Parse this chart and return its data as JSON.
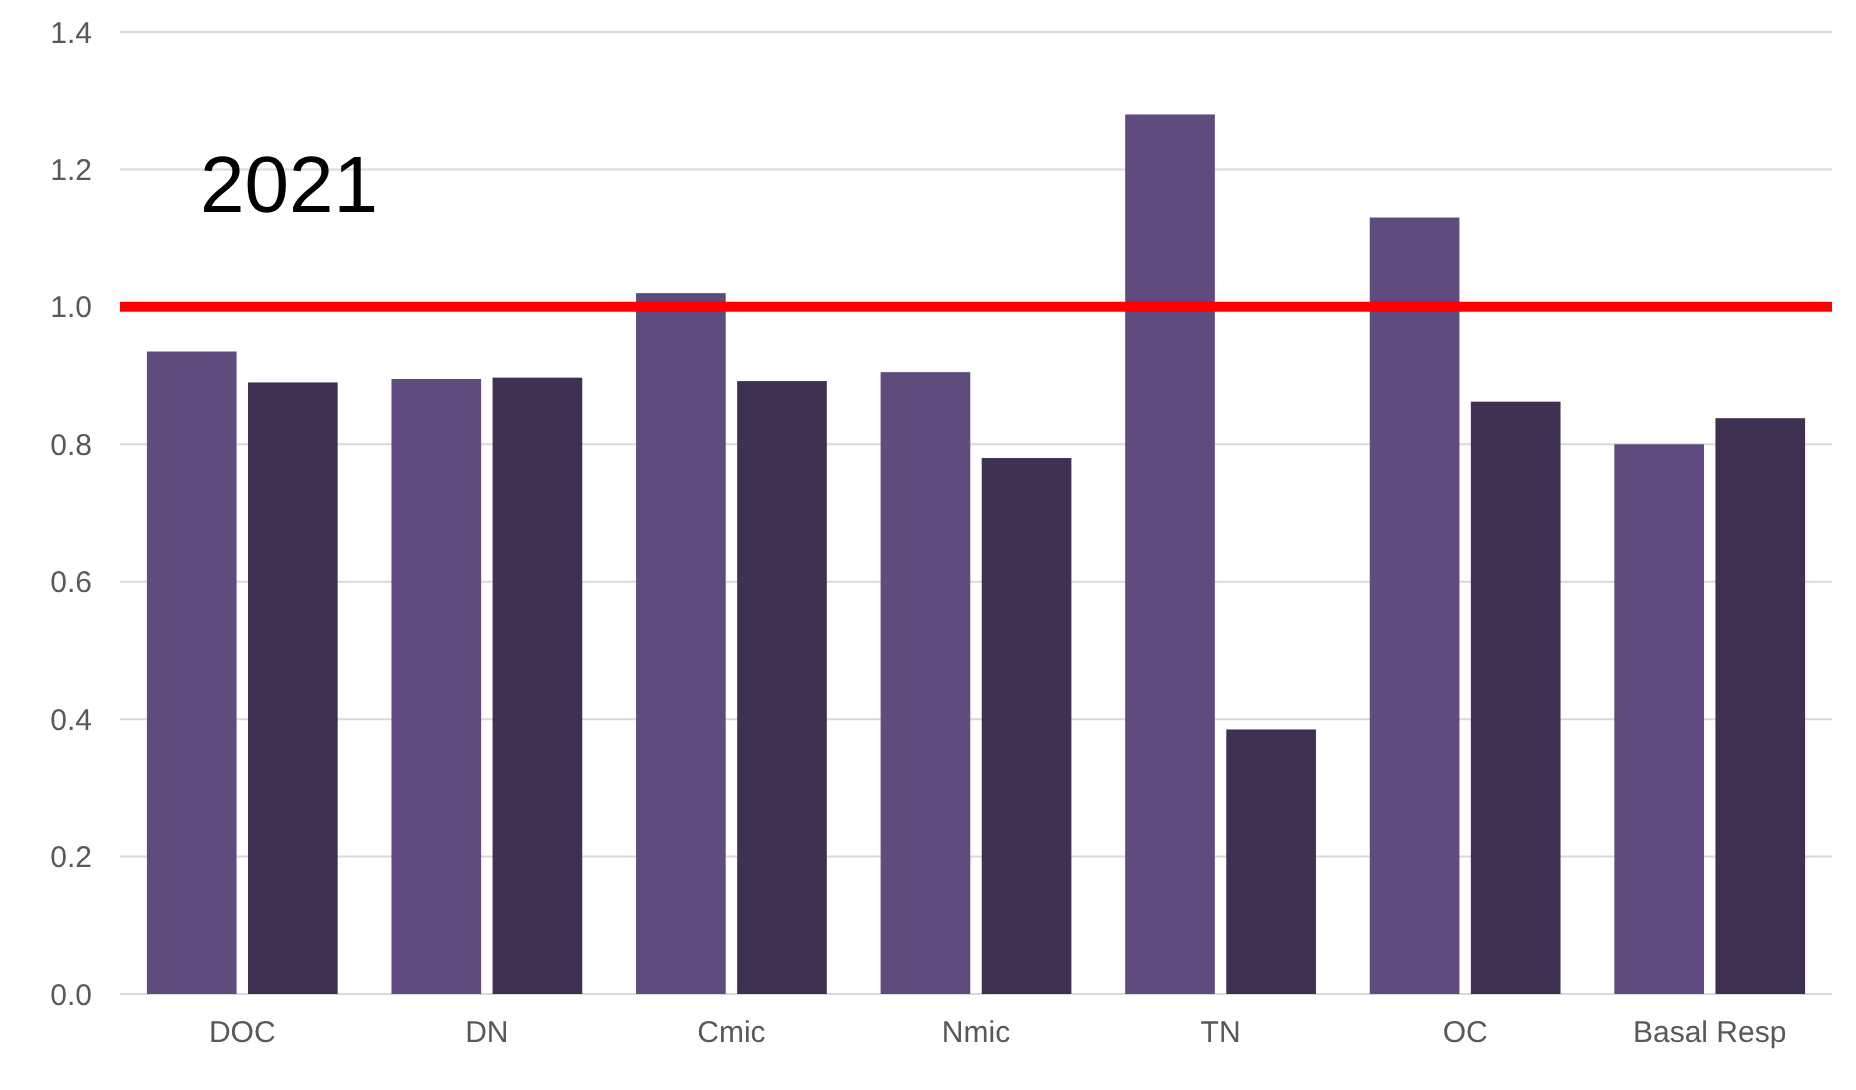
{
  "chart_data": {
    "type": "bar",
    "categories": [
      "DOC",
      "DN",
      "Cmic",
      "Nmic",
      "TN",
      "OC",
      "Basal Resp"
    ],
    "series": [
      {
        "color": "#5f4b7e",
        "values": [
          0.935,
          0.895,
          1.02,
          0.905,
          1.28,
          1.13,
          0.8
        ]
      },
      {
        "color": "#3f3152",
        "values": [
          0.89,
          0.897,
          0.892,
          0.78,
          0.385,
          0.862,
          0.838
        ]
      }
    ],
    "ylim": [
      0,
      1.4
    ],
    "yticks": [
      {
        "value": 0,
        "label": "0.0"
      },
      {
        "value": 0.2,
        "label": "0.2"
      },
      {
        "value": 0.4,
        "label": "0.4"
      },
      {
        "value": 0.6,
        "label": "0.6"
      },
      {
        "value": 0.8,
        "label": "0.8"
      },
      {
        "value": 1,
        "label": "1.0"
      },
      {
        "value": 1.2,
        "label": "1.2"
      },
      {
        "value": 1.4,
        "label": "1.4"
      }
    ],
    "grid": "y",
    "ref_lines": [
      {
        "axis": "y",
        "value": 1.0,
        "color": "#ff0000"
      }
    ],
    "annotations": [
      "2021"
    ]
  }
}
